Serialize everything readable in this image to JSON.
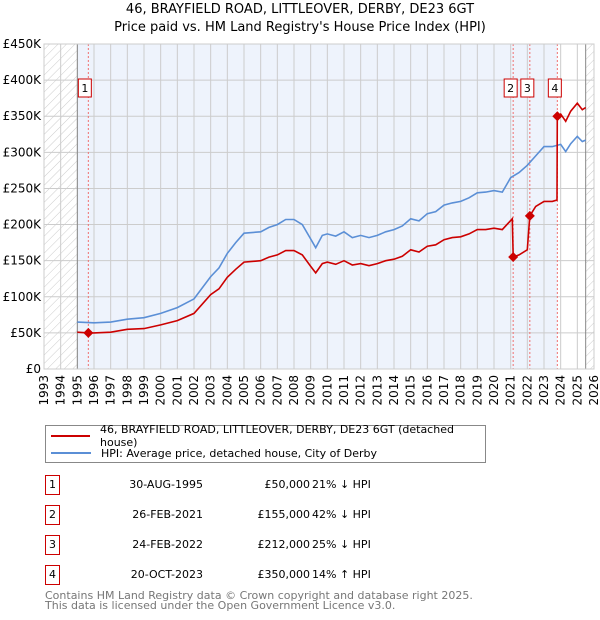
{
  "title": "46, BRAYFIELD ROAD, LITTLEOVER, DERBY, DE23 6GT",
  "subtitle": "Price paid vs. HM Land Registry's House Price Index (HPI)",
  "chart_data": {
    "type": "line",
    "ylim": [
      0,
      450000
    ],
    "xlim": [
      1993,
      2026
    ],
    "yticks": [
      0,
      50000,
      100000,
      150000,
      200000,
      250000,
      300000,
      350000,
      400000,
      450000
    ],
    "ytick_labels": [
      "£0",
      "£50K",
      "£100K",
      "£150K",
      "£200K",
      "£250K",
      "£300K",
      "£350K",
      "£400K",
      "£450K"
    ],
    "xticks": [
      1993,
      1994,
      1995,
      1996,
      1997,
      1998,
      1999,
      2000,
      2001,
      2002,
      2003,
      2004,
      2005,
      2006,
      2007,
      2008,
      2009,
      2010,
      2011,
      2012,
      2013,
      2014,
      2015,
      2016,
      2017,
      2018,
      2019,
      2020,
      2021,
      2022,
      2023,
      2024,
      2025,
      2026
    ],
    "data_range": [
      1995,
      2025.5
    ],
    "colors": {
      "property": "#cc0000",
      "hpi": "#5b8fd6",
      "shade": "#eef3fc"
    },
    "series": [
      {
        "name": "46, BRAYFIELD ROAD, LITTLEOVER, DERBY, DE23 6GT (detached house)",
        "color": "#cc0000",
        "x": [
          1995,
          1995.66,
          1996,
          1997,
          1998,
          1999,
          2000,
          2001,
          2002,
          2003,
          2003.5,
          2004,
          2004.5,
          2005,
          2006,
          2006.5,
          2007,
          2007.5,
          2008,
          2008.5,
          2009,
          2009.3,
          2009.7,
          2010,
          2010.5,
          2011,
          2011.5,
          2012,
          2012.5,
          2013,
          2013.5,
          2014,
          2014.5,
          2015,
          2015.5,
          2016,
          2016.5,
          2017,
          2017.5,
          2018,
          2018.5,
          2019,
          2019.5,
          2020,
          2020.5,
          2021.1,
          2021.15,
          2021.5,
          2022.0,
          2022.15,
          2022.5,
          2023,
          2023.5,
          2023.78,
          2023.8,
          2024,
          2024.3,
          2024.6,
          2025,
          2025.3,
          2025.5
        ],
        "y": [
          51,
          50,
          50,
          51,
          55,
          56,
          61,
          67,
          77,
          103,
          111,
          127,
          138,
          148,
          150,
          155,
          158,
          164,
          164,
          158,
          142,
          133,
          146,
          148,
          145,
          150,
          144,
          146,
          143,
          146,
          150,
          152,
          156,
          165,
          162,
          170,
          172,
          179,
          182,
          183,
          187,
          193,
          193,
          195,
          193,
          208,
          155,
          158,
          165,
          212,
          225,
          232,
          232,
          234,
          350,
          353,
          343,
          357,
          368,
          359,
          362
        ]
      },
      {
        "name": "HPI: Average price, detached house, City of Derby",
        "color": "#5b8fd6",
        "x": [
          1995,
          1996,
          1997,
          1998,
          1999,
          2000,
          2001,
          2002,
          2003,
          2003.5,
          2004,
          2004.5,
          2005,
          2006,
          2006.5,
          2007,
          2007.5,
          2008,
          2008.5,
          2009,
          2009.3,
          2009.7,
          2010,
          2010.5,
          2011,
          2011.5,
          2012,
          2012.5,
          2013,
          2013.5,
          2014,
          2014.5,
          2015,
          2015.5,
          2016,
          2016.5,
          2017,
          2017.5,
          2018,
          2018.5,
          2019,
          2019.5,
          2020,
          2020.5,
          2021,
          2021.5,
          2022,
          2022.5,
          2023,
          2023.5,
          2024,
          2024.3,
          2024.6,
          2025,
          2025.3,
          2025.5
        ],
        "y": [
          65,
          64,
          65,
          69,
          71,
          77,
          85,
          97,
          128,
          140,
          160,
          175,
          188,
          190,
          196,
          200,
          207,
          207,
          200,
          180,
          168,
          185,
          187,
          184,
          190,
          182,
          185,
          182,
          185,
          190,
          193,
          198,
          208,
          205,
          215,
          218,
          227,
          230,
          232,
          237,
          244,
          245,
          247,
          245,
          265,
          272,
          282,
          295,
          308,
          308,
          311,
          301,
          312,
          322,
          315,
          317
        ]
      }
    ],
    "y_units": "thousand GBP",
    "sales": [
      {
        "label": "1",
        "x": 1995.66,
        "y": 50
      },
      {
        "label": "2",
        "x": 2021.15,
        "y": 155
      },
      {
        "label": "3",
        "x": 2022.15,
        "y": 212
      },
      {
        "label": "4",
        "x": 2023.8,
        "y": 350
      }
    ]
  },
  "legend": [
    "46, BRAYFIELD ROAD, LITTLEOVER, DERBY, DE23 6GT (detached house)",
    "HPI: Average price, detached house, City of Derby"
  ],
  "transactions": [
    {
      "num": "1",
      "date": "30-AUG-1995",
      "price": "£50,000",
      "hpi": "21% ↓ HPI"
    },
    {
      "num": "2",
      "date": "26-FEB-2021",
      "price": "£155,000",
      "hpi": "42% ↓ HPI"
    },
    {
      "num": "3",
      "date": "24-FEB-2022",
      "price": "£212,000",
      "hpi": "25% ↓ HPI"
    },
    {
      "num": "4",
      "date": "20-OCT-2023",
      "price": "£350,000",
      "hpi": "14% ↑ HPI"
    }
  ],
  "footer": [
    "Contains HM Land Registry data © Crown copyright and database right 2025.",
    "This data is licensed under the Open Government Licence v3.0."
  ]
}
